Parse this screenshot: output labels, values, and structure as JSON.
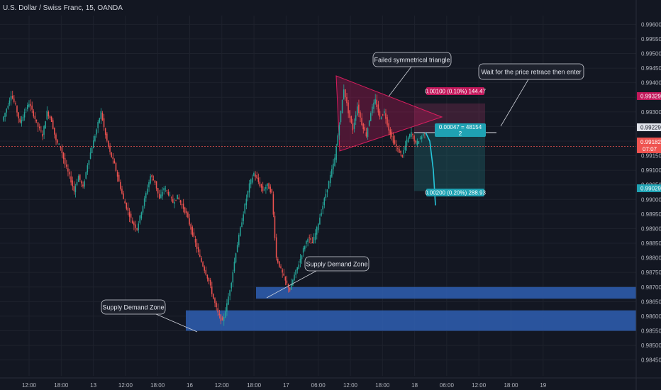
{
  "chart_data": {
    "type": "candlestick",
    "title": "U.S. Dollar / Swiss Franc, 15, OANDA",
    "y_ticks": [
      "0.99600",
      "0.99550",
      "0.99500",
      "0.99450",
      "0.99400",
      "0.99350",
      "0.99300",
      "0.99250",
      "0.99200",
      "0.99150",
      "0.99100",
      "0.99050",
      "0.99000",
      "0.98950",
      "0.98900",
      "0.98850",
      "0.98800",
      "0.98750",
      "0.98700",
      "0.98650",
      "0.98600",
      "0.98550",
      "0.98500",
      "0.98450"
    ],
    "x_ticks": [
      "12:00",
      "18:00",
      "13",
      "12:00",
      "18:00",
      "16",
      "12:00",
      "18:00",
      "17",
      "06:00",
      "12:00",
      "18:00",
      "18",
      "06:00",
      "12:00",
      "18:00",
      "19"
    ],
    "ylim": [
      0.9842,
      0.9963
    ],
    "price_labels": {
      "take_profit_top": "0.99329",
      "entry": "0.99229",
      "current": "0.99182",
      "countdown": "07:07",
      "stop_bottom": "0.99029"
    },
    "position_tool": {
      "upper_label": "0.00100 (0.10%) 144.47",
      "middle_label": "0.00047 = 48154",
      "middle_sub": "2",
      "lower_label": "0.00200 (0.20%) 288.93"
    },
    "annotations": {
      "triangle": "Failed symmetrical triangle",
      "wait": "Wait for the price retrace then enter",
      "zone_upper": "Supply Demand Zone",
      "zone_lower": "Supply Demand Zone"
    },
    "path_points": [
      [
        0.9927,
        0.9931
      ],
      [
        0.9931,
        0.9936
      ],
      [
        0.9936,
        0.9932
      ],
      [
        0.9932,
        0.9926
      ],
      [
        0.9926,
        0.993
      ],
      [
        0.993,
        0.9933
      ],
      [
        0.9933,
        0.9929
      ],
      [
        0.9929,
        0.9925
      ],
      [
        0.9925,
        0.9922
      ],
      [
        0.9922,
        0.993
      ],
      [
        0.993,
        0.9927
      ],
      [
        0.9927,
        0.992
      ],
      [
        0.992,
        0.9918
      ],
      [
        0.9918,
        0.9912
      ],
      [
        0.9912,
        0.9908
      ],
      [
        0.9908,
        0.9903
      ],
      [
        0.9903,
        0.9908
      ],
      [
        0.9908,
        0.9904
      ],
      [
        0.9904,
        0.9912
      ],
      [
        0.9912,
        0.9918
      ],
      [
        0.9918,
        0.9924
      ],
      [
        0.9924,
        0.993
      ],
      [
        0.993,
        0.9922
      ],
      [
        0.9922,
        0.9916
      ],
      [
        0.9916,
        0.9912
      ],
      [
        0.9912,
        0.9906
      ],
      [
        0.9906,
        0.99
      ],
      [
        0.99,
        0.9896
      ],
      [
        0.9896,
        0.9892
      ],
      [
        0.9892,
        0.989
      ],
      [
        0.989,
        0.9896
      ],
      [
        0.9896,
        0.9902
      ],
      [
        0.9902,
        0.9908
      ],
      [
        0.9908,
        0.9906
      ],
      [
        0.9906,
        0.99
      ],
      [
        0.99,
        0.9904
      ],
      [
        0.9904,
        0.9902
      ],
      [
        0.9902,
        0.9899
      ],
      [
        0.9899,
        0.9901
      ],
      [
        0.9901,
        0.9898
      ],
      [
        0.9898,
        0.9895
      ],
      [
        0.9895,
        0.989
      ],
      [
        0.989,
        0.9885
      ],
      [
        0.9885,
        0.988
      ],
      [
        0.988,
        0.9876
      ],
      [
        0.9876,
        0.9872
      ],
      [
        0.9872,
        0.9866
      ],
      [
        0.9866,
        0.9861
      ],
      [
        0.9861,
        0.9858
      ],
      [
        0.9858,
        0.9864
      ],
      [
        0.9864,
        0.9872
      ],
      [
        0.9872,
        0.9882
      ],
      [
        0.9882,
        0.989
      ],
      [
        0.989,
        0.9898
      ],
      [
        0.9898,
        0.9905
      ],
      [
        0.9905,
        0.9909
      ],
      [
        0.9909,
        0.9906
      ],
      [
        0.9906,
        0.9903
      ],
      [
        0.9903,
        0.9905
      ],
      [
        0.9905,
        0.9902
      ],
      [
        0.9902,
        0.988
      ],
      [
        0.988,
        0.9876
      ],
      [
        0.9876,
        0.9872
      ],
      [
        0.9872,
        0.9869
      ],
      [
        0.9869,
        0.9874
      ],
      [
        0.9874,
        0.9878
      ],
      [
        0.9878,
        0.9883
      ],
      [
        0.9883,
        0.9887
      ],
      [
        0.9887,
        0.9885
      ],
      [
        0.9885,
        0.989
      ],
      [
        0.989,
        0.9896
      ],
      [
        0.9896,
        0.9902
      ],
      [
        0.9902,
        0.9908
      ],
      [
        0.9908,
        0.9914
      ],
      [
        0.9914,
        0.9926
      ],
      [
        0.9926,
        0.9938
      ],
      [
        0.9938,
        0.993
      ],
      [
        0.993,
        0.9924
      ],
      [
        0.9924,
        0.9932
      ],
      [
        0.9932,
        0.9926
      ],
      [
        0.9926,
        0.9922
      ],
      [
        0.9922,
        0.993
      ],
      [
        0.993,
        0.9934
      ],
      [
        0.9934,
        0.9928
      ],
      [
        0.9928,
        0.993
      ],
      [
        0.993,
        0.9924
      ],
      [
        0.9924,
        0.992
      ],
      [
        0.992,
        0.9917
      ],
      [
        0.9917,
        0.9915
      ],
      [
        0.9915,
        0.992
      ],
      [
        0.992,
        0.9923
      ],
      [
        0.9923,
        0.9919
      ],
      [
        0.9919,
        0.9921
      ],
      [
        0.9921,
        0.9923
      ]
    ],
    "projection": [
      [
        0.9923,
        0.992
      ],
      [
        0.992,
        0.991
      ],
      [
        0.991,
        0.9898
      ]
    ],
    "zones": [
      {
        "name": "Supply Demand Zone",
        "from": 0.987,
        "to": 0.9866
      },
      {
        "name": "Supply Demand Zone",
        "from": 0.9862,
        "to": 0.9855
      }
    ]
  }
}
